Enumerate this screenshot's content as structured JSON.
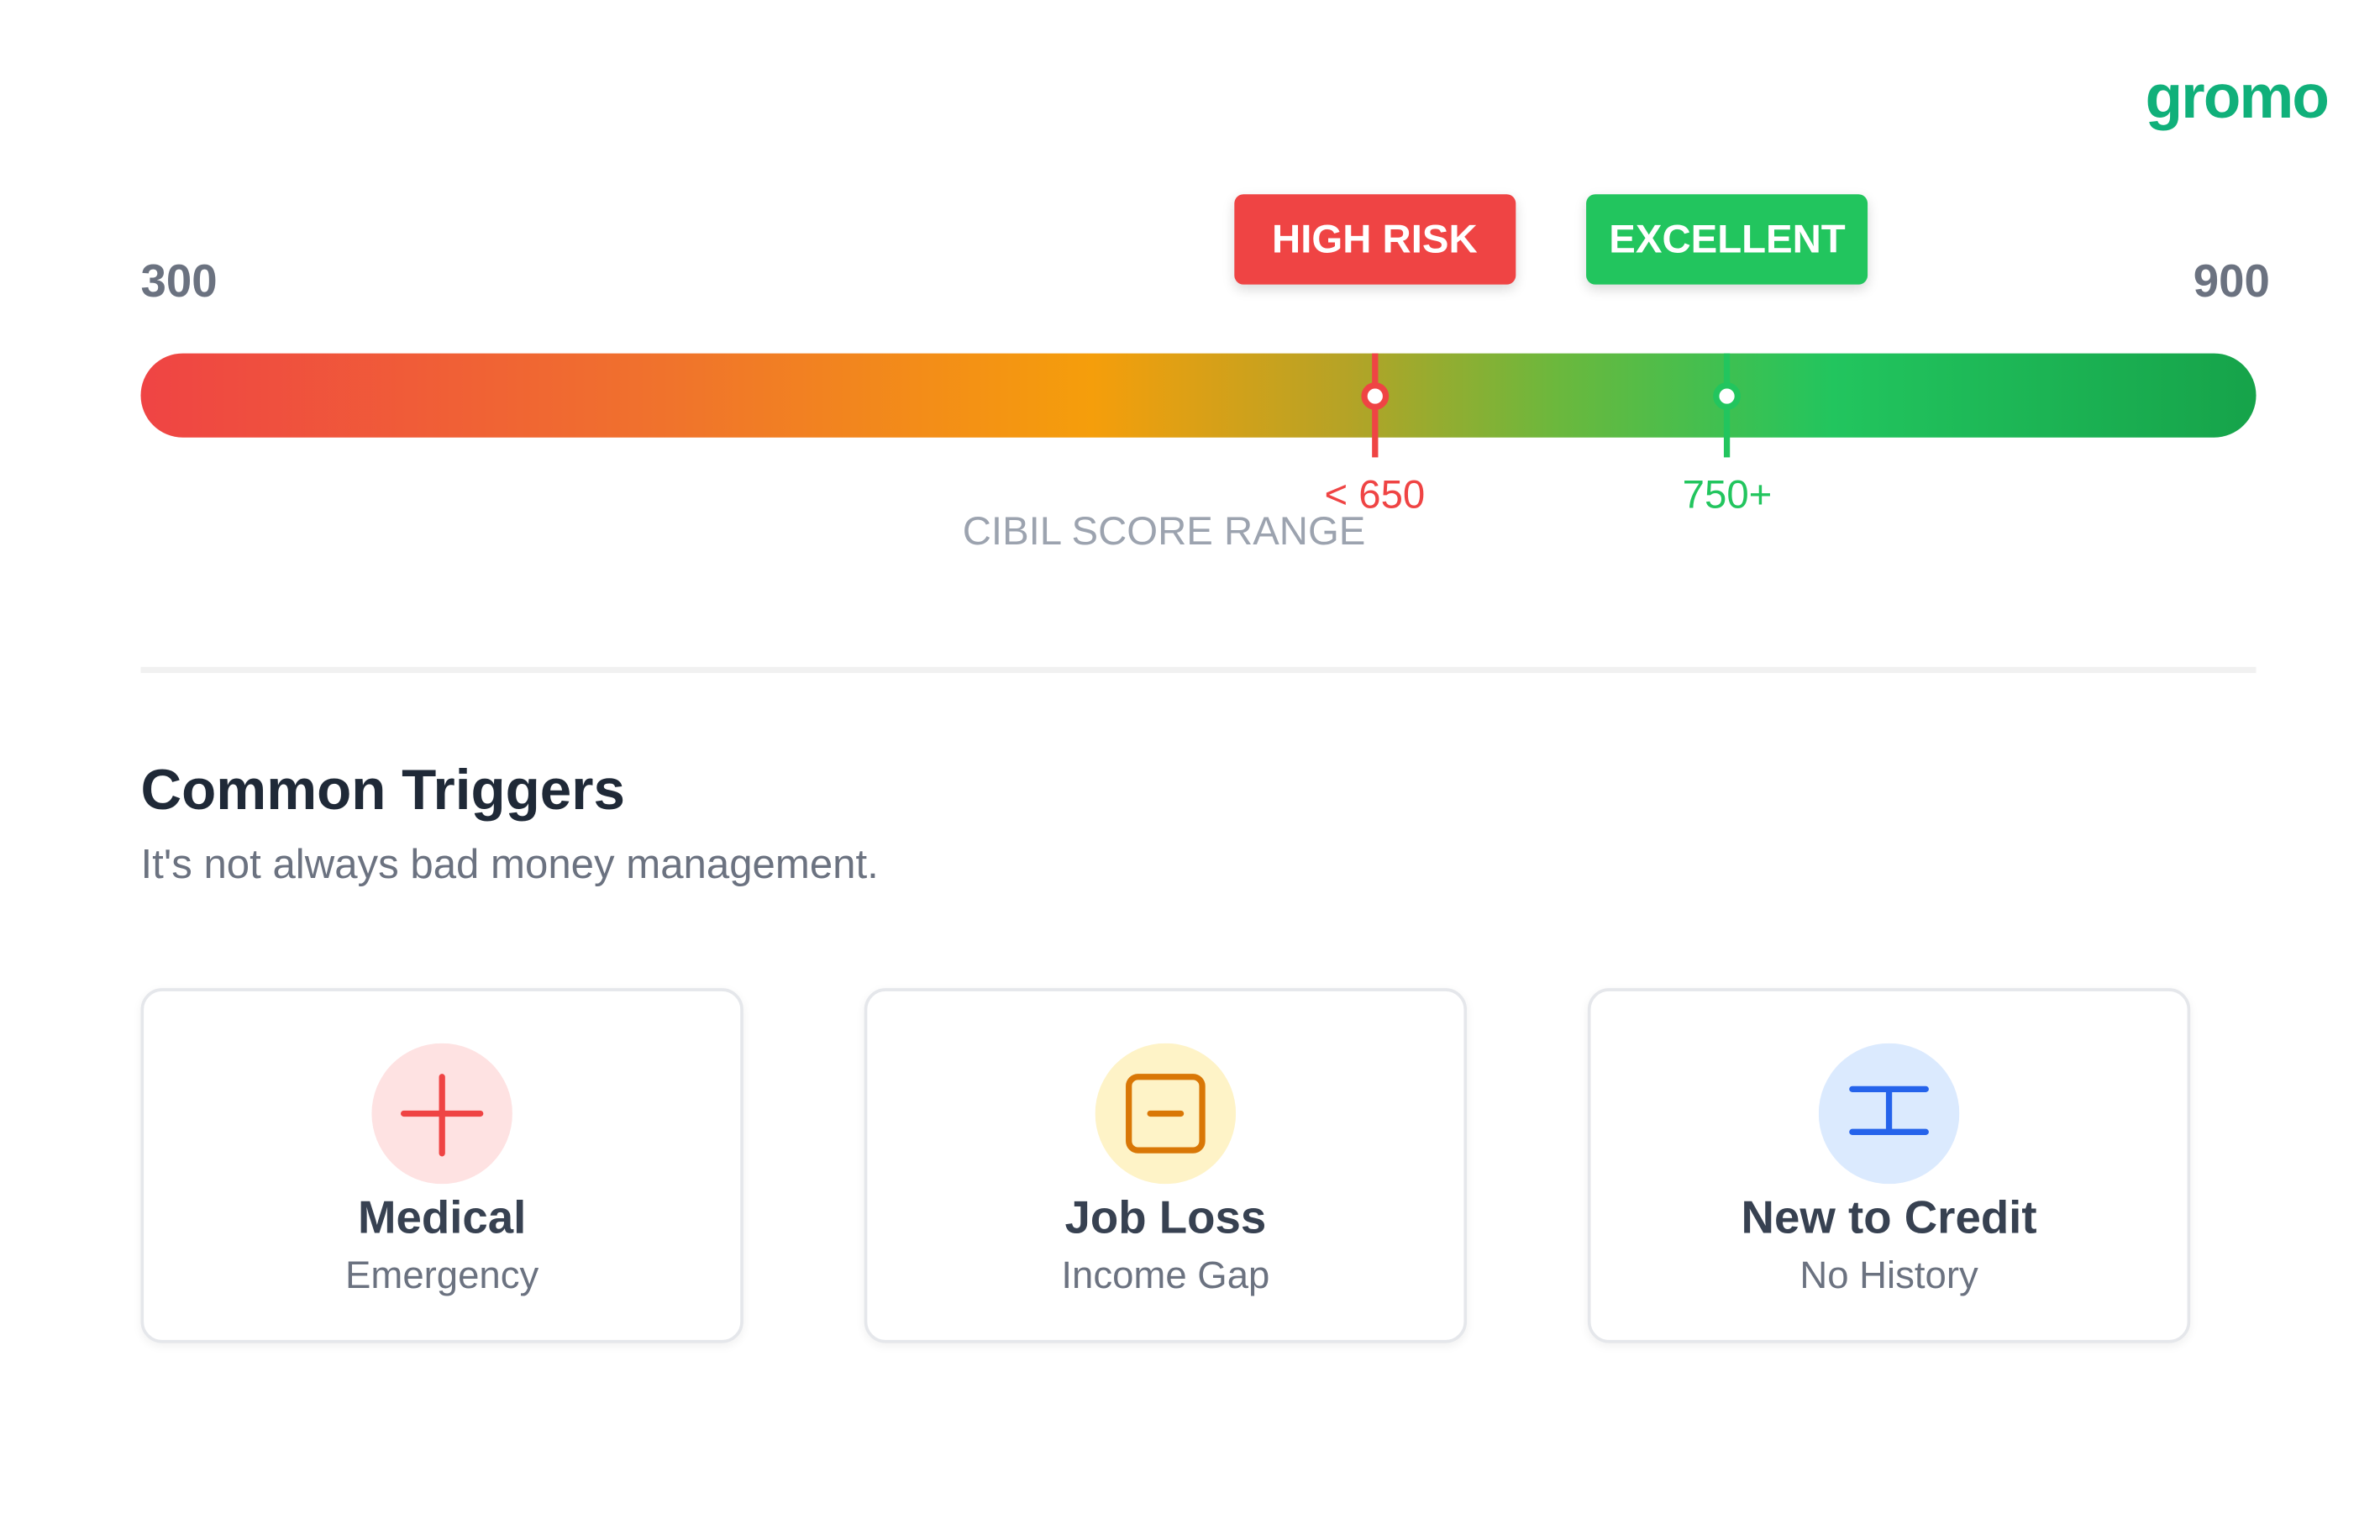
{
  "logo": "gromo",
  "scale": {
    "min": 300,
    "max": 900,
    "caption": "CIBIL SCORE RANGE",
    "markers": [
      {
        "value": 650,
        "label": "< 650",
        "badge": "HIGH RISK",
        "color": "#ef4444"
      },
      {
        "value": 750,
        "label": "750+",
        "badge": "EXCELLENT",
        "color": "#22c55e"
      }
    ]
  },
  "section": {
    "title": "Common Triggers",
    "subtitle": "It's not always bad money management."
  },
  "cards": [
    {
      "title": "Medical",
      "subtitle": "Emergency"
    },
    {
      "title": "Job Loss",
      "subtitle": "Income Gap"
    },
    {
      "title": "New to Credit",
      "subtitle": "No History"
    }
  ]
}
